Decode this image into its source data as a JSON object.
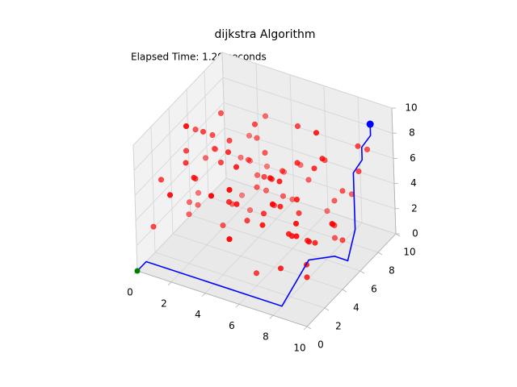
{
  "chart_data": {
    "type": "scatter3d",
    "title": "dijkstra Algorithm",
    "annotation": "Elapsed Time: 1.29 seconds",
    "xlim": [
      0,
      10
    ],
    "ylim": [
      0,
      10
    ],
    "zlim": [
      0,
      10
    ],
    "xticks": [
      0,
      2,
      4,
      6,
      8,
      10
    ],
    "yticks": [
      0,
      2,
      4,
      6,
      8,
      10
    ],
    "zticks": [
      0,
      2,
      4,
      6,
      8,
      10
    ],
    "obstacles": {
      "color": "#ff0000",
      "x": [
        1,
        3,
        5,
        7,
        9,
        2,
        4,
        6,
        8,
        0.5,
        2,
        4,
        6,
        8,
        1,
        3,
        5,
        7,
        9,
        6,
        0.5,
        2,
        5,
        7,
        9,
        3,
        4,
        8,
        1,
        6,
        3,
        5,
        7,
        2,
        9,
        4,
        6,
        8,
        0.5,
        1,
        5,
        2,
        7,
        4,
        9,
        1,
        3,
        6,
        8,
        5,
        8,
        6,
        4,
        2,
        0.5,
        9,
        7,
        5,
        3,
        1,
        1.5,
        3.5,
        5.5,
        7.5,
        9.5,
        2.5,
        4.5,
        6.5,
        8.5,
        0.5,
        6,
        4,
        2,
        8,
        9,
        7,
        3,
        5,
        1,
        4,
        7,
        9,
        2,
        5,
        3,
        6,
        8,
        1,
        4,
        9,
        5,
        3,
        6,
        2,
        8,
        4,
        7,
        1,
        9,
        6
      ],
      "y": [
        2,
        5,
        8,
        1,
        3,
        6,
        9,
        4,
        7,
        2,
        8,
        1,
        4,
        7,
        5,
        9,
        2,
        6,
        1,
        3,
        6,
        3,
        9,
        5,
        2,
        7,
        1,
        8,
        4,
        6,
        4,
        7,
        2,
        9,
        6,
        3,
        8,
        5,
        1,
        7,
        5,
        8,
        3,
        6,
        9,
        2,
        4,
        7,
        1,
        6,
        9,
        4,
        7,
        2,
        5,
        1,
        6,
        3,
        8,
        4,
        3,
        7,
        1,
        8,
        4,
        6,
        2,
        9,
        5,
        8,
        2,
        6,
        9,
        3,
        8,
        5,
        1,
        7,
        4,
        3,
        8,
        2,
        5,
        1,
        7,
        9,
        4,
        6,
        3,
        5,
        1,
        9,
        6,
        4,
        2,
        7,
        3,
        5,
        8,
        9
      ],
      "z": [
        5,
        8,
        2,
        6,
        4,
        9,
        3,
        7,
        1,
        6,
        4,
        7,
        5,
        2,
        8,
        3,
        9,
        1,
        6,
        5,
        2,
        6,
        4,
        8,
        3,
        5,
        7,
        4,
        9,
        1,
        7,
        3,
        9,
        5,
        2,
        6,
        4,
        8,
        3,
        5,
        6,
        1,
        8,
        4,
        7,
        5,
        2,
        9,
        3,
        3,
        3,
        5,
        6,
        8,
        2,
        7,
        1,
        4,
        6,
        9,
        8,
        4,
        7,
        3,
        5,
        2,
        6,
        1,
        9,
        4,
        1,
        9,
        3,
        7,
        6,
        4,
        8,
        5,
        2,
        6,
        6,
        2,
        8,
        4,
        1,
        7,
        3,
        5,
        9,
        4,
        4,
        7,
        1,
        9,
        5,
        3,
        6,
        2,
        8,
        7
      ]
    },
    "path": {
      "color": "#0000ff",
      "x": [
        0,
        0,
        8,
        7.5,
        8.5,
        9,
        9.5,
        9.5,
        9.5,
        9.5,
        9.5,
        9.5
      ],
      "y": [
        0,
        1,
        1,
        5,
        6,
        6.5,
        6.5,
        6.5,
        7.5,
        7.5,
        8.5,
        8.5
      ],
      "z": [
        0,
        0,
        0,
        0.5,
        0.5,
        0,
        2.7,
        7.2,
        7.5,
        8.5,
        8.7,
        9.6
      ]
    },
    "start": {
      "color": "#008000",
      "x": 0,
      "y": 0,
      "z": 0
    },
    "goal": {
      "color": "#0000ff",
      "x": 9.5,
      "y": 8.5,
      "z": 9.6
    }
  }
}
